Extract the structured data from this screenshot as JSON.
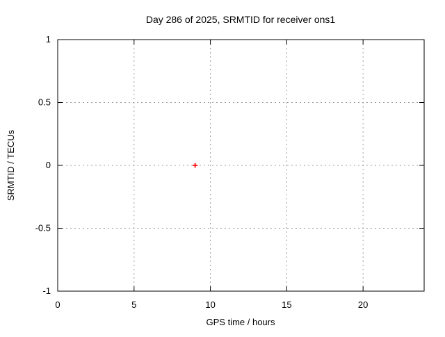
{
  "chart_data": {
    "type": "scatter",
    "title": "Day 286 of 2025, SRMTID for receiver ons1",
    "xlabel": "GPS time / hours",
    "ylabel": "SRMTID / TECUs",
    "xlim": [
      0,
      24
    ],
    "ylim": [
      -1,
      1
    ],
    "x_ticks": [
      0,
      5,
      10,
      15,
      20
    ],
    "y_ticks": [
      -1,
      -0.5,
      0,
      0.5,
      1
    ],
    "grid": true,
    "legend": "none",
    "colors": {
      "background": "#ffffff",
      "border": "#000000",
      "grid": "#9e9e9e",
      "text": "#000000",
      "marker": "#ff0000"
    },
    "series": [
      {
        "name": "SRMTID",
        "marker": "plus",
        "color": "#ff0000",
        "points": [
          {
            "x": 9,
            "y": 0
          }
        ]
      }
    ]
  }
}
